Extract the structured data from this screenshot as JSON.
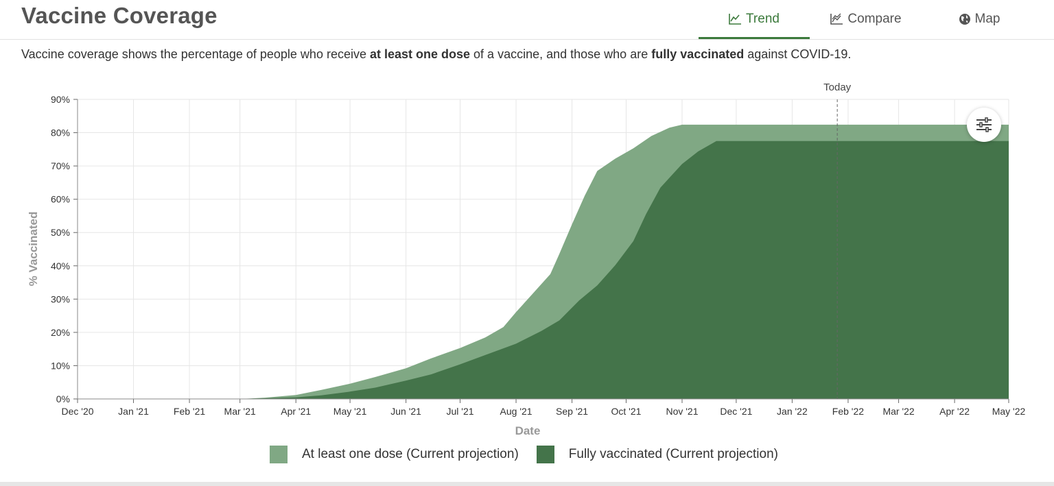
{
  "header": {
    "title": "Vaccine Coverage",
    "tabs": [
      {
        "label": "Trend",
        "icon": "line-chart-icon",
        "active": true
      },
      {
        "label": "Compare",
        "icon": "multi-line-chart-icon",
        "active": false
      },
      {
        "label": "Map",
        "icon": "globe-icon",
        "active": false
      }
    ]
  },
  "description": {
    "part1": "Vaccine coverage shows the percentage of people who receive ",
    "bold1": "at least one dose",
    "part2": " of a vaccine, and those who are ",
    "bold2": "fully vaccinated",
    "part3": " against COVID-19."
  },
  "colors": {
    "accent": "#3c7a3c",
    "at_least_one_dose": "#80a884",
    "fully_vaccinated": "#44744a"
  },
  "chart_data": {
    "type": "area",
    "xlabel": "Date",
    "ylabel": "% Vaccinated",
    "ylim": [
      0,
      90
    ],
    "xlim": [
      "2020-12-01",
      "2022-05-01"
    ],
    "x_ticks": [
      "Dec '20",
      "Jan '21",
      "Feb '21",
      "Mar '21",
      "Apr '21",
      "May '21",
      "Jun '21",
      "Jul '21",
      "Aug '21",
      "Sep '21",
      "Oct '21",
      "Nov '21",
      "Dec '21",
      "Jan '22",
      "Feb '22",
      "Mar '22",
      "Apr '22",
      "May '22"
    ],
    "y_ticks": [
      "0%",
      "10%",
      "20%",
      "30%",
      "40%",
      "50%",
      "60%",
      "70%",
      "80%",
      "90%"
    ],
    "grid": true,
    "legend_position": "bottom",
    "reference_line": {
      "label": "Today",
      "date": "2022-01-26"
    },
    "series": [
      {
        "name": "At least one dose (Current projection)",
        "color": "#80a884",
        "points": [
          [
            "2020-12-01",
            0
          ],
          [
            "2021-03-01",
            0
          ],
          [
            "2021-03-15",
            0.4
          ],
          [
            "2021-04-01",
            1.2
          ],
          [
            "2021-04-15",
            2.7
          ],
          [
            "2021-05-01",
            4.6
          ],
          [
            "2021-05-15",
            6.6
          ],
          [
            "2021-06-01",
            9.2
          ],
          [
            "2021-06-15",
            12.2
          ],
          [
            "2021-07-01",
            15.3
          ],
          [
            "2021-07-15",
            18.5
          ],
          [
            "2021-07-25",
            21.6
          ],
          [
            "2021-08-01",
            26.1
          ],
          [
            "2021-08-10",
            31.5
          ],
          [
            "2021-08-20",
            37.5
          ],
          [
            "2021-08-25",
            43.6
          ],
          [
            "2021-09-01",
            52.5
          ],
          [
            "2021-09-08",
            61
          ],
          [
            "2021-09-15",
            68.5
          ],
          [
            "2021-09-25",
            72.2
          ],
          [
            "2021-10-05",
            75.3
          ],
          [
            "2021-10-15",
            79
          ],
          [
            "2021-10-25",
            81.5
          ],
          [
            "2021-11-01",
            82.4
          ],
          [
            "2022-05-01",
            82.4
          ]
        ]
      },
      {
        "name": "Fully vaccinated (Current projection)",
        "color": "#44744a",
        "points": [
          [
            "2020-12-01",
            0
          ],
          [
            "2021-03-01",
            0
          ],
          [
            "2021-04-01",
            0.5
          ],
          [
            "2021-04-15",
            1.1
          ],
          [
            "2021-05-01",
            2.2
          ],
          [
            "2021-05-15",
            3.4
          ],
          [
            "2021-06-01",
            5.5
          ],
          [
            "2021-06-15",
            7.4
          ],
          [
            "2021-07-01",
            10.4
          ],
          [
            "2021-07-15",
            13.2
          ],
          [
            "2021-08-01",
            16.6
          ],
          [
            "2021-08-15",
            20.4
          ],
          [
            "2021-08-25",
            23.6
          ],
          [
            "2021-09-05",
            29.6
          ],
          [
            "2021-09-15",
            34.1
          ],
          [
            "2021-09-25",
            40.2
          ],
          [
            "2021-10-05",
            47.4
          ],
          [
            "2021-10-12",
            55.5
          ],
          [
            "2021-10-20",
            63.5
          ],
          [
            "2021-11-01",
            70.6
          ],
          [
            "2021-11-10",
            74.4
          ],
          [
            "2021-11-20",
            77.5
          ],
          [
            "2022-05-01",
            77.5
          ]
        ]
      }
    ]
  },
  "legend": [
    {
      "label": "At least one dose (Current projection)",
      "color": "#80a884"
    },
    {
      "label": "Fully vaccinated (Current projection)",
      "color": "#44744a"
    }
  ],
  "controls": {
    "settings_icon": "sliders-icon"
  }
}
